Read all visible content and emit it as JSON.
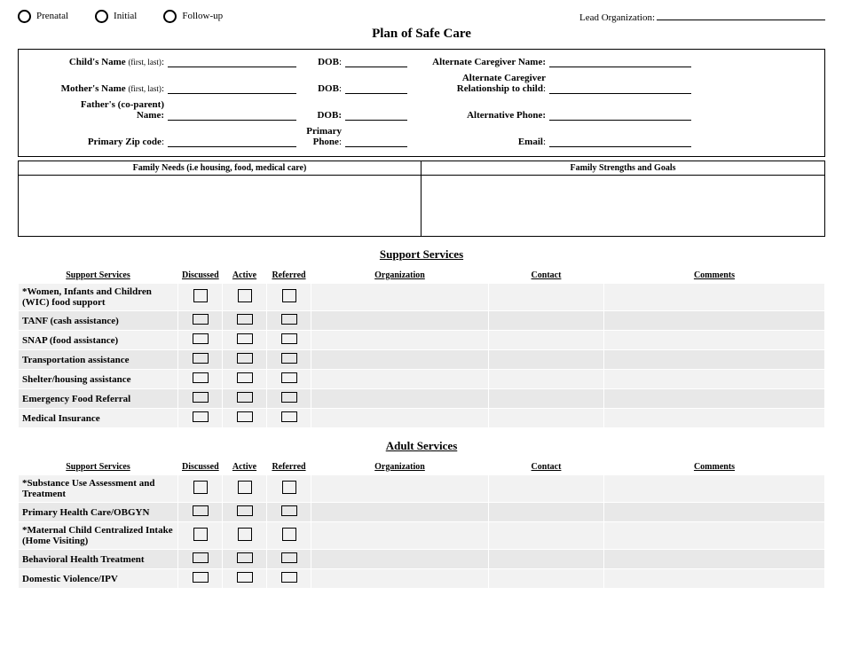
{
  "top": {
    "options": [
      "Prenatal",
      "Initial",
      "Follow-up"
    ],
    "lead_org_label": "Lead Organization:"
  },
  "title": "Plan of Safe Care",
  "info": {
    "child_name_label": "Child's Name",
    "first_last": "(first, last)",
    "dob_label": "DOB",
    "alt_caregiver_name_label": "Alternate Caregiver Name:",
    "mother_name_label": "Mother's Name",
    "alt_caregiver_rel_label_1": "Alternate Caregiver",
    "alt_caregiver_rel_label_2": "Relationship to child",
    "father_label_1": "Father's (co-parent)",
    "father_label_2": "Name:",
    "alt_phone_label": "Alternative Phone:",
    "zip_label": "Primary Zip code",
    "primary_phone_1": "Primary",
    "primary_phone_2": "Phone",
    "email_label": "Email"
  },
  "two_col": {
    "left_header": "Family Needs (i.e housing, food, medical care)",
    "right_header": "Family Strengths and Goals"
  },
  "sections": {
    "support_title": "Support Services",
    "adult_title": "Adult Services",
    "headers": {
      "services": "Support Services",
      "discussed": "Discussed",
      "active": "Active",
      "referred": "Referred",
      "organization": "Organization",
      "contact": "Contact",
      "comments": "Comments"
    },
    "support_rows": [
      {
        "name": "*Women, Infants and Children (WIC) food support",
        "big": true
      },
      {
        "name": "TANF (cash assistance)"
      },
      {
        "name": "SNAP (food assistance)"
      },
      {
        "name": "Transportation assistance"
      },
      {
        "name": "Shelter/housing assistance"
      },
      {
        "name": "Emergency Food Referral"
      },
      {
        "name": "Medical Insurance"
      }
    ],
    "adult_rows": [
      {
        "name": "*Substance Use Assessment and Treatment",
        "big": true
      },
      {
        "name": "Primary Health Care/OBGYN"
      },
      {
        "name": "*Maternal Child Centralized Intake\n(Home Visiting)",
        "big": true
      },
      {
        "name": "Behavioral Health Treatment"
      },
      {
        "name": "Domestic Violence/IPV"
      }
    ]
  }
}
